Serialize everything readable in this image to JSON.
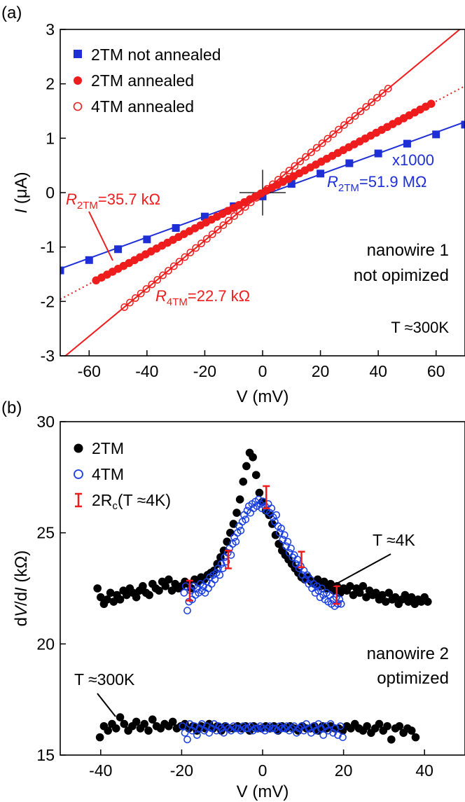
{
  "colors": {
    "blue": "#1f2fd6",
    "red": "#ee1c1c",
    "black": "#000000",
    "cb_blue": "#1a3fe0"
  },
  "chart_data": [
    {
      "panel_label": "(a)",
      "type": "scatter",
      "xlabel": "V (mV)",
      "ylabel_italic": "I",
      "ylabel_rest": "  (μA)",
      "xlim": [
        -70,
        70
      ],
      "ylim": [
        -3,
        3
      ],
      "xticks": [
        -60,
        -40,
        -20,
        0,
        20,
        40,
        60
      ],
      "xtick_labels": [
        "-60",
        "-40",
        "-20",
        "0",
        "20",
        "40",
        "60"
      ],
      "yticks": [
        -3,
        -2,
        -1,
        0,
        1,
        2,
        3
      ],
      "ytick_labels": [
        "-3",
        "-2",
        "-1",
        "0",
        "1",
        "2",
        "3"
      ],
      "legend": [
        "2TM not annealed",
        "2TM annealed",
        "4TM annealed"
      ],
      "series": [
        {
          "name": "2TM not annealed",
          "marker": "square",
          "color": "#1f2fd6",
          "x": [
            -70,
            -60,
            -50,
            -40,
            -30,
            -20,
            -10,
            0,
            10,
            20,
            30,
            40,
            50,
            60,
            70
          ],
          "y": [
            -1.43,
            -1.24,
            -1.04,
            -0.86,
            -0.65,
            -0.44,
            -0.25,
            -0.07,
            0.16,
            0.35,
            0.54,
            0.72,
            0.9,
            1.07,
            1.25
          ],
          "fit": {
            "x": [
              -70,
              70
            ],
            "y": [
              -1.4,
              1.3
            ],
            "dash": false
          }
        },
        {
          "name": "2TM annealed",
          "marker": "filled-circle",
          "color": "#ee1c1c",
          "x_start": -57.6,
          "x_end": 58.6,
          "x_step": 1.9,
          "slope": 0.02801,
          "fit": {
            "x": [
              -70,
              70
            ],
            "y": [
              -1.96,
              1.96
            ],
            "dash": true
          }
        },
        {
          "name": "4TM annealed",
          "marker": "open-circle",
          "color": "#ee1c1c",
          "x_start": -47.8,
          "x_end": 43.6,
          "x_step": 1.9,
          "slope": 0.04405,
          "fit": {
            "x": [
              -70,
              70
            ],
            "y": [
              -3.08,
              3.08
            ],
            "dash": false
          }
        }
      ],
      "annotations": {
        "r2tm_red_italic": "R",
        "r2tm_red_sub": "2TM",
        "r2tm_red_value": "=35.7 kΩ",
        "r4tm_italic": "R",
        "r4tm_sub": "4TM",
        "r4tm_value": "=22.7 kΩ",
        "x1000": "x1000",
        "r2tm_blue_italic": "R",
        "r2tm_blue_sub": "2TM",
        "r2tm_blue_value": "=51.9 MΩ",
        "nanowire_line1": "nanowire 1",
        "nanowire_line2": "not opimized",
        "temperature": "T ≈300K"
      }
    },
    {
      "panel_label": "(b)",
      "type": "scatter",
      "xlabel": "V (mV)",
      "ylabel_rest": "  (kΩ)",
      "xlim": [
        -50,
        50
      ],
      "ylim": [
        15,
        30
      ],
      "xticks": [
        -40,
        -20,
        0,
        20,
        40
      ],
      "xtick_labels": [
        "-40",
        "-20",
        "0",
        "20",
        "40"
      ],
      "yticks": [
        15,
        20,
        25,
        30
      ],
      "ytick_labels": [
        "15",
        "20",
        "25",
        "30"
      ],
      "legend": [
        "2TM",
        "4TM",
        "2Rc(T ≈4K)"
      ],
      "series": [
        {
          "name": "2TM",
          "condition": "T ≈4K",
          "marker": "filled-circle",
          "color": "#000000",
          "x": [
            -40.8,
            -40,
            -39.2,
            -38.4,
            -37.6,
            -36.8,
            -36,
            -35.2,
            -34.4,
            -33.6,
            -32.8,
            -32,
            -31.2,
            -30.4,
            -29.6,
            -28.8,
            -28,
            -27.2,
            -26.4,
            -25.6,
            -24.8,
            -24,
            -23.2,
            -22.4,
            -21.6,
            -20.8,
            -20,
            -19.2,
            -18.4,
            -17.6,
            -16.8,
            -16,
            -15.2,
            -14.4,
            -13.6,
            -12.8,
            -12,
            -11.2,
            -10.4,
            -9.6,
            -8.8,
            -8,
            -7.2,
            -6.4,
            -5.6,
            -4.8,
            -4,
            -3.2,
            -2.4,
            -1.6,
            -0.8,
            0,
            0.8,
            1.6,
            2.4,
            3.2,
            4,
            4.8,
            5.6,
            6.4,
            7.2,
            8,
            8.8,
            9.6,
            10.4,
            11.2,
            12,
            12.8,
            13.6,
            14.4,
            15.2,
            16,
            16.8,
            17.6,
            18.4,
            19.2,
            20,
            20.8,
            21.6,
            22.4,
            23.2,
            24,
            24.8,
            25.6,
            26.4,
            27.2,
            28,
            28.8,
            29.6,
            30.4,
            31.2,
            32,
            32.8,
            33.6,
            34.4,
            35.2,
            36,
            36.8,
            37.6,
            38.4,
            39.2,
            40,
            40.8
          ],
          "y": [
            22.5,
            22.1,
            21.8,
            22.0,
            22.3,
            21.9,
            22.2,
            22.0,
            22.4,
            22.2,
            22.5,
            22.3,
            22.1,
            22.4,
            22.6,
            22.3,
            22.2,
            22.7,
            22.5,
            22.4,
            22.8,
            22.6,
            22.9,
            22.4,
            22.7,
            22.5,
            22.6,
            22.8,
            22.7,
            22.5,
            22.9,
            22.8,
            23.0,
            22.9,
            23.1,
            23.2,
            23.3,
            23.6,
            23.9,
            24.2,
            24.6,
            25.0,
            25.4,
            25.9,
            26.5,
            27.3,
            28.0,
            28.6,
            28.4,
            27.6,
            26.8,
            26.4,
            26.0,
            25.8,
            25.4,
            24.9,
            24.5,
            24.2,
            24.0,
            23.8,
            23.6,
            23.4,
            23.2,
            23.0,
            22.9,
            23.0,
            22.8,
            22.7,
            22.9,
            22.6,
            22.8,
            22.5,
            22.7,
            22.4,
            22.6,
            22.3,
            22.5,
            22.4,
            22.6,
            22.2,
            22.5,
            22.3,
            22.6,
            22.1,
            22.4,
            22.2,
            22.3,
            22.0,
            22.2,
            21.9,
            22.3,
            22.0,
            22.1,
            21.8,
            22.0,
            22.2,
            21.9,
            22.1,
            21.8,
            22.0,
            21.9,
            22.1,
            21.9
          ]
        },
        {
          "name": "4TM",
          "condition": "T ≈4K",
          "marker": "open-circle",
          "color": "#1a3fe0",
          "x": [
            -19.4,
            -19,
            -18.6,
            -18.2,
            -17.8,
            -17.4,
            -17,
            -16.6,
            -16.2,
            -15.8,
            -15.4,
            -15,
            -14.6,
            -14.2,
            -13.8,
            -13.4,
            -13,
            -12.6,
            -12.2,
            -11.8,
            -11.4,
            -11,
            -10.6,
            -10.2,
            -9.8,
            -9.4,
            -9,
            -8.6,
            -8.2,
            -7.8,
            -7.4,
            -7,
            -6.6,
            -6.2,
            -5.8,
            -5.4,
            -5,
            -4.6,
            -4.2,
            -3.8,
            -3.4,
            -3,
            -2.6,
            -2.2,
            -1.8,
            -1.4,
            -1,
            -0.6,
            -0.2,
            0.2,
            0.6,
            1,
            1.4,
            1.8,
            2.2,
            2.6,
            3,
            3.4,
            3.8,
            4.2,
            4.6,
            5,
            5.4,
            5.8,
            6.2,
            6.6,
            7,
            7.4,
            7.8,
            8.2,
            8.6,
            9,
            9.4,
            9.8,
            10.2,
            10.6,
            11,
            11.4,
            11.8,
            12.2,
            12.6,
            13,
            13.4,
            13.8,
            14.2,
            14.6,
            15,
            15.4,
            15.8,
            16.2,
            16.6,
            17,
            17.4,
            17.8,
            18.2,
            18.6,
            19,
            19.4
          ],
          "y": [
            22.3,
            22.6,
            21.5,
            21.9,
            22.4,
            22.0,
            22.6,
            22.2,
            22.5,
            22.3,
            22.7,
            22.4,
            22.6,
            22.3,
            22.8,
            22.5,
            23.0,
            22.7,
            23.1,
            22.9,
            23.2,
            23.4,
            23.1,
            23.6,
            23.4,
            23.9,
            23.7,
            24.1,
            24.3,
            24.0,
            24.5,
            24.8,
            24.6,
            25.0,
            25.3,
            25.1,
            25.5,
            25.8,
            25.6,
            26.0,
            26.2,
            25.9,
            26.3,
            26.1,
            26.4,
            26.2,
            26.5,
            26.3,
            26.1,
            26.4,
            26.2,
            26.0,
            26.3,
            25.9,
            26.1,
            25.7,
            25.5,
            25.8,
            25.3,
            25.0,
            25.2,
            24.7,
            24.9,
            24.4,
            24.6,
            24.1,
            24.3,
            23.9,
            24.0,
            23.6,
            23.8,
            23.4,
            23.5,
            23.1,
            23.3,
            22.9,
            23.1,
            22.7,
            22.9,
            22.5,
            22.7,
            22.3,
            22.6,
            22.4,
            22.1,
            22.5,
            22.2,
            22.0,
            22.3,
            21.9,
            22.2,
            21.8,
            22.0,
            21.7,
            22.1,
            21.8,
            22.0,
            21.8
          ]
        },
        {
          "name": "2TM",
          "condition": "T ≈300K",
          "marker": "filled-circle",
          "color": "#000000",
          "x": [
            -40.2,
            -39.2,
            -38.2,
            -37.2,
            -36.2,
            -35.2,
            -34.2,
            -33.2,
            -32.2,
            -31.2,
            -30.2,
            -29.2,
            -28.2,
            -27.2,
            -26.2,
            -25.2,
            -24.2,
            -23.2,
            -22.2,
            -21.2,
            -20.2,
            -19.2,
            -18.2,
            -17.2,
            -16.2,
            -15.2,
            -14.2,
            -13.2,
            -12.2,
            -11.2,
            -10.2,
            -9.2,
            -8.2,
            -7.2,
            -6.2,
            -5.2,
            -4.2,
            -3.2,
            -2.2,
            -1.2,
            -0.2,
            0.8,
            1.8,
            2.8,
            3.8,
            4.8,
            5.8,
            6.8,
            7.8,
            8.8,
            9.8,
            10.8,
            11.8,
            12.8,
            13.8,
            14.8,
            15.8,
            16.8,
            17.8,
            18.8,
            19.8,
            20.8,
            21.8,
            22.8,
            23.8,
            24.8,
            25.8,
            26.8,
            27.8,
            28.8,
            29.8,
            30.8,
            31.8,
            32.8,
            33.8,
            34.8,
            35.8,
            36.8,
            37.8
          ],
          "y": [
            15.8,
            16.3,
            16.1,
            16.4,
            16.2,
            16.7,
            16.4,
            16.1,
            16.3,
            16.5,
            16.2,
            16.4,
            16.1,
            16.6,
            16.3,
            16.2,
            16.4,
            16.3,
            16.5,
            16.2,
            16.3,
            16.4,
            16.2,
            16.3,
            16.1,
            16.3,
            16.2,
            16.4,
            16.2,
            16.3,
            16.1,
            16.3,
            16.2,
            16.2,
            16.3,
            16.2,
            16.3,
            16.1,
            16.3,
            16.2,
            16.2,
            16.3,
            16.2,
            16.3,
            16.1,
            16.3,
            16.2,
            16.3,
            16.2,
            16.1,
            16.3,
            16.2,
            16.2,
            16.3,
            16.1,
            16.3,
            16.2,
            16.3,
            16.2,
            16.2,
            16.1,
            16.3,
            16.2,
            16.4,
            16.2,
            16.1,
            16.3,
            16.0,
            16.2,
            16.4,
            16.1,
            16.3,
            15.7,
            16.2,
            16.3,
            16.0,
            16.2,
            16.1,
            15.8
          ]
        },
        {
          "name": "4TM",
          "condition": "T ≈300K",
          "marker": "open-circle",
          "color": "#1a3fe0",
          "x": [
            -19.8,
            -19.2,
            -18.6,
            -18,
            -17.4,
            -16.8,
            -16.2,
            -15.6,
            -15,
            -14.4,
            -13.8,
            -13.2,
            -12.6,
            -12,
            -11.4,
            -10.8,
            -10.2,
            -9.6,
            -9,
            -8.4,
            -7.8,
            -7.2,
            -6.6,
            -6,
            -5.4,
            -4.8,
            -4.2,
            -3.6,
            -3,
            -2.4,
            -1.8,
            -1.2,
            -0.6,
            0,
            0.6,
            1.2,
            1.8,
            2.4,
            3,
            3.6,
            4.2,
            4.8,
            5.4,
            6,
            6.6,
            7.2,
            7.8,
            8.4,
            9,
            9.6,
            10.2,
            10.8,
            11.4,
            12,
            12.6,
            13.2,
            13.8,
            14.4,
            15,
            15.6,
            16.2,
            16.8,
            17.4,
            18,
            18.6,
            19.2,
            19.8
          ],
          "y": [
            16.3,
            16.0,
            15.7,
            16.4,
            16.1,
            16.3,
            15.9,
            16.2,
            16.4,
            16.1,
            16.3,
            16.0,
            16.2,
            16.4,
            16.1,
            16.3,
            16.2,
            16.0,
            16.3,
            16.2,
            16.1,
            16.3,
            16.2,
            16.2,
            16.1,
            16.3,
            16.2,
            16.2,
            16.3,
            16.1,
            16.2,
            16.2,
            16.3,
            16.2,
            16.1,
            16.2,
            16.3,
            16.2,
            16.2,
            16.1,
            16.3,
            16.2,
            16.2,
            16.3,
            16.1,
            16.2,
            16.3,
            16.0,
            16.2,
            16.3,
            16.1,
            16.4,
            16.2,
            16.0,
            16.3,
            16.1,
            16.4,
            16.2,
            15.9,
            16.3,
            16.1,
            16.4,
            16.0,
            16.2,
            15.9,
            16.3,
            15.8
          ]
        },
        {
          "name": "2Rc(T ≈4K)",
          "marker": "errorbar",
          "color": "#ee1c1c",
          "x": [
            -18,
            -8.5,
            0.9,
            9.6,
            18.3
          ],
          "y": [
            22.4,
            23.8,
            26.6,
            23.8,
            22.2
          ],
          "err": [
            0.45,
            0.4,
            0.5,
            0.35,
            0.4
          ]
        }
      ],
      "annotations": {
        "t4k": "T ≈4K",
        "t300k": "T ≈300K",
        "nanowire_line1": "nanowire 2",
        "nanowire_line2": "optimized"
      }
    }
  ]
}
